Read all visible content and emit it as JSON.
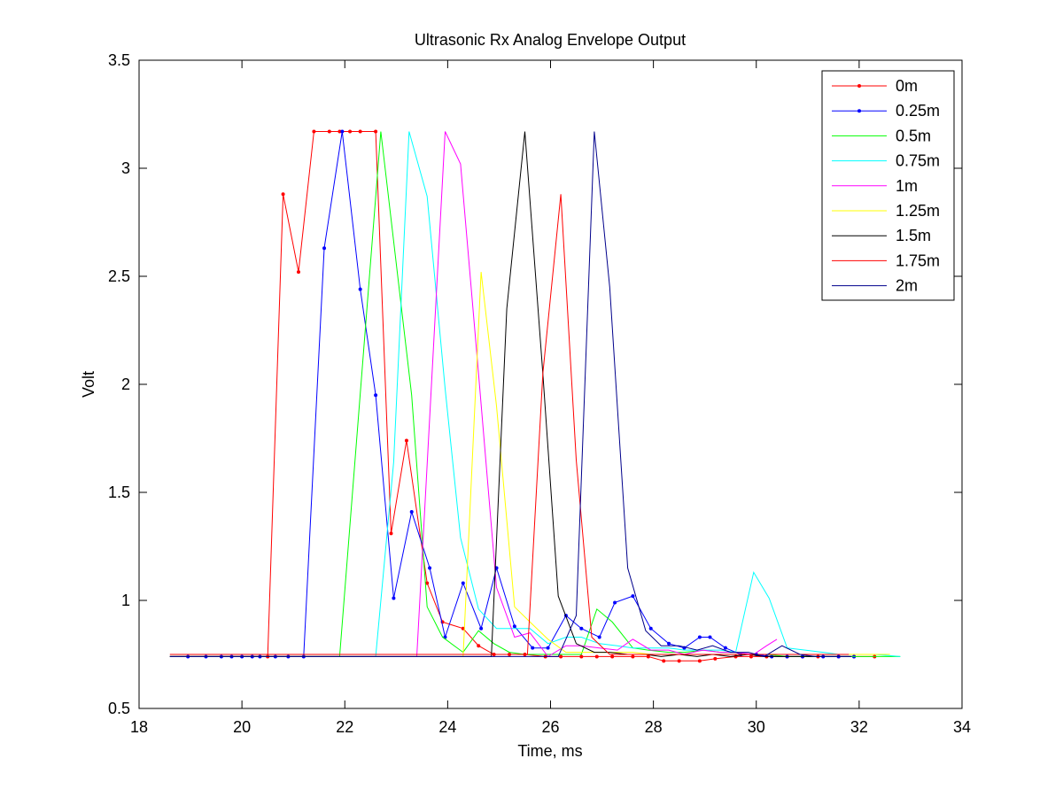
{
  "chart_data": {
    "type": "line",
    "title": "Ultrasonic Rx Analog Envelope Output",
    "xlabel": "Time, ms",
    "ylabel": "Volt",
    "xlim": [
      18,
      34
    ],
    "ylim": [
      0.5,
      3.5
    ],
    "xticks": [
      18,
      20,
      22,
      24,
      26,
      28,
      30,
      32,
      34
    ],
    "yticks": [
      0.5,
      1,
      1.5,
      2,
      2.5,
      3,
      3.5
    ],
    "xtick_labels": [
      "18",
      "20",
      "22",
      "24",
      "26",
      "28",
      "30",
      "32",
      "34"
    ],
    "ytick_labels": [
      "0.5",
      "1",
      "1.5",
      "2",
      "2.5",
      "3",
      "3.5"
    ],
    "grid": false,
    "legend_position": "top-right",
    "series": [
      {
        "name": "0m",
        "color": "#ff0000",
        "marker": true,
        "x": [
          18.6,
          20.5,
          20.8,
          21.1,
          21.4,
          21.7,
          21.9,
          22.1,
          22.3,
          22.6,
          22.9,
          23.2,
          23.6,
          23.9,
          24.3,
          24.6,
          24.9,
          25.2,
          25.5,
          25.9,
          26.2,
          26.6,
          26.9,
          27.2,
          27.6,
          27.9,
          28.2,
          28.5,
          28.9,
          29.2,
          29.6,
          29.9,
          30.2,
          30.6,
          30.9,
          31.2,
          31.6,
          31.9,
          32.3
        ],
        "y": [
          0.74,
          0.74,
          2.88,
          2.52,
          3.17,
          3.17,
          3.17,
          3.17,
          3.17,
          3.17,
          1.31,
          1.74,
          1.08,
          0.9,
          0.87,
          0.79,
          0.75,
          0.75,
          0.75,
          0.74,
          0.74,
          0.74,
          0.74,
          0.74,
          0.74,
          0.74,
          0.72,
          0.72,
          0.72,
          0.73,
          0.74,
          0.74,
          0.74,
          0.74,
          0.74,
          0.74,
          0.74,
          0.74,
          0.74
        ]
      },
      {
        "name": "0.25m",
        "color": "#0000ff",
        "marker": true,
        "x": [
          18.6,
          18.95,
          19.3,
          19.6,
          19.8,
          20.0,
          20.2,
          20.35,
          20.65,
          20.9,
          21.2,
          21.6,
          21.95,
          22.3,
          22.6,
          22.95,
          23.3,
          23.65,
          23.95,
          24.3,
          24.65,
          24.95,
          25.3,
          25.65,
          25.95,
          26.3,
          26.6,
          26.95,
          27.25,
          27.6,
          27.95,
          28.3,
          28.6,
          28.9,
          29.1,
          29.4,
          29.7,
          30.0,
          30.3,
          30.6,
          30.9,
          31.3,
          31.6,
          31.9
        ],
        "y": [
          0.74,
          0.74,
          0.74,
          0.74,
          0.74,
          0.74,
          0.74,
          0.74,
          0.74,
          0.74,
          0.74,
          2.63,
          3.17,
          2.44,
          1.95,
          1.01,
          1.41,
          1.15,
          0.83,
          1.08,
          0.87,
          1.15,
          0.88,
          0.78,
          0.78,
          0.93,
          0.87,
          0.83,
          0.99,
          1.02,
          0.87,
          0.8,
          0.78,
          0.83,
          0.83,
          0.78,
          0.75,
          0.75,
          0.74,
          0.74,
          0.74,
          0.74,
          0.74,
          0.74
        ]
      },
      {
        "name": "0.5m",
        "color": "#00ff00",
        "marker": false,
        "x": [
          18.6,
          21.9,
          22.7,
          23.3,
          23.6,
          23.9,
          24.3,
          24.6,
          24.9,
          25.2,
          25.5,
          25.9,
          26.3,
          26.6,
          26.9,
          27.2,
          27.6,
          27.9,
          28.3,
          28.6,
          29.0,
          29.3,
          29.6,
          29.9,
          30.2,
          30.6,
          31.0,
          31.4,
          31.8,
          32.2,
          32.8
        ],
        "y": [
          0.74,
          0.74,
          3.17,
          1.95,
          0.97,
          0.83,
          0.76,
          0.86,
          0.8,
          0.76,
          0.75,
          0.75,
          0.75,
          0.75,
          0.96,
          0.9,
          0.78,
          0.77,
          0.76,
          0.76,
          0.77,
          0.76,
          0.76,
          0.75,
          0.75,
          0.74,
          0.74,
          0.74,
          0.74,
          0.74,
          0.74
        ]
      },
      {
        "name": "0.75m",
        "color": "#00ffff",
        "marker": false,
        "x": [
          18.6,
          22.6,
          22.95,
          23.25,
          23.6,
          23.95,
          24.25,
          24.6,
          24.95,
          25.3,
          25.6,
          25.95,
          26.3,
          26.6,
          26.95,
          27.3,
          27.6,
          27.95,
          28.3,
          28.6,
          28.95,
          29.3,
          29.6,
          29.95,
          30.25,
          30.6,
          30.95,
          31.3,
          31.6,
          31.95,
          32.3,
          32.8
        ],
        "y": [
          0.74,
          0.74,
          1.64,
          3.17,
          2.87,
          1.98,
          1.29,
          0.96,
          0.87,
          0.87,
          0.87,
          0.8,
          0.83,
          0.83,
          0.8,
          0.79,
          0.78,
          0.78,
          0.78,
          0.77,
          0.77,
          0.77,
          0.76,
          1.13,
          1.01,
          0.78,
          0.77,
          0.76,
          0.75,
          0.75,
          0.75,
          0.74
        ]
      },
      {
        "name": "1m",
        "color": "#ff00ff",
        "marker": false,
        "x": [
          18.6,
          23.4,
          23.95,
          24.25,
          24.6,
          24.95,
          25.3,
          25.6,
          25.95,
          26.3,
          26.6,
          26.95,
          27.3,
          27.6,
          27.95,
          28.3,
          28.6,
          28.95,
          29.3,
          29.6,
          29.95,
          30.2,
          30.4
        ],
        "y": [
          0.74,
          0.74,
          3.17,
          3.02,
          2.05,
          1.06,
          0.83,
          0.85,
          0.74,
          0.79,
          0.79,
          0.78,
          0.77,
          0.82,
          0.77,
          0.77,
          0.75,
          0.77,
          0.76,
          0.76,
          0.75,
          0.79,
          0.82
        ]
      },
      {
        "name": "1.25m",
        "color": "#ffff00",
        "marker": false,
        "x": [
          18.6,
          24.3,
          24.65,
          24.95,
          25.3,
          25.6,
          25.95,
          26.3,
          26.6,
          26.95,
          27.3,
          27.6,
          27.95,
          28.3,
          28.6,
          28.95,
          29.3,
          29.6,
          29.95,
          30.3,
          30.6,
          30.95,
          31.3,
          31.6,
          31.95,
          32.3,
          32.6
        ],
        "y": [
          0.74,
          0.74,
          2.52,
          1.9,
          0.97,
          0.9,
          0.82,
          0.76,
          0.76,
          0.76,
          0.76,
          0.76,
          0.75,
          0.75,
          0.75,
          0.75,
          0.75,
          0.75,
          0.75,
          0.75,
          0.75,
          0.75,
          0.75,
          0.75,
          0.75,
          0.75,
          0.75
        ]
      },
      {
        "name": "1.5m",
        "color": "#000000",
        "marker": false,
        "x": [
          18.6,
          24.85,
          25.15,
          25.5,
          25.85,
          26.15,
          26.5,
          26.85,
          27.15,
          27.5,
          27.85,
          28.15,
          28.5,
          28.85,
          29.15,
          29.5,
          29.85,
          30.15,
          30.5,
          30.85,
          31.15,
          31.5,
          31.85
        ],
        "y": [
          0.74,
          0.74,
          2.35,
          3.17,
          2.05,
          1.02,
          0.8,
          0.76,
          0.76,
          0.75,
          0.75,
          0.74,
          0.75,
          0.74,
          0.75,
          0.74,
          0.75,
          0.74,
          0.74,
          0.74,
          0.74,
          0.74,
          0.74
        ]
      },
      {
        "name": "1.75m",
        "color": "#ff0000",
        "marker": false,
        "x": [
          18.6,
          25.55,
          25.85,
          26.2,
          26.5,
          26.8,
          27.15,
          27.5,
          27.8,
          28.15,
          28.5,
          28.8,
          29.15,
          29.5,
          29.8,
          30.15,
          30.5,
          30.8,
          31.15,
          31.5,
          31.8
        ],
        "y": [
          0.75,
          0.75,
          2.05,
          2.88,
          1.65,
          0.83,
          0.75,
          0.75,
          0.75,
          0.75,
          0.75,
          0.75,
          0.75,
          0.75,
          0.75,
          0.75,
          0.75,
          0.75,
          0.75,
          0.75,
          0.75
        ]
      },
      {
        "name": "2m",
        "color": "#00008b",
        "marker": false,
        "x": [
          18.6,
          26.15,
          26.5,
          26.85,
          27.15,
          27.5,
          27.85,
          28.15,
          28.5,
          28.85,
          29.15,
          29.5,
          29.85,
          30.15,
          30.5,
          30.85,
          31.15,
          31.5,
          31.85
        ],
        "y": [
          0.74,
          0.74,
          0.93,
          3.17,
          2.45,
          1.15,
          0.86,
          0.79,
          0.79,
          0.77,
          0.79,
          0.76,
          0.76,
          0.74,
          0.79,
          0.75,
          0.74,
          0.74,
          0.74
        ]
      }
    ]
  }
}
